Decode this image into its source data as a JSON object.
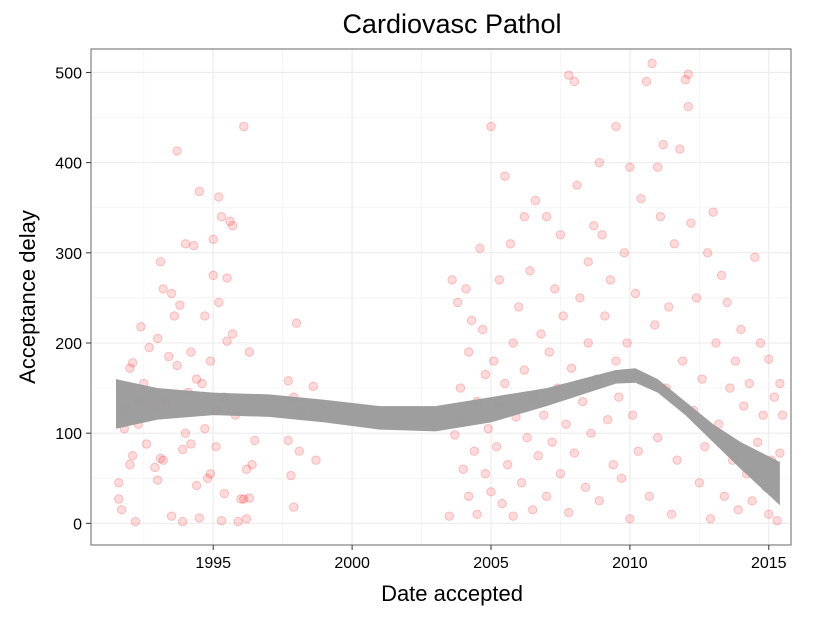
{
  "chart_data": {
    "type": "scatter",
    "title": "Cardiovasc Pathol",
    "xlabel": "Date accepted",
    "ylabel": "Acceptance delay",
    "xlim": [
      1990.6,
      2015.8
    ],
    "ylim": [
      -24,
      526
    ],
    "x_ticks": [
      1995,
      2000,
      2005,
      2010,
      2015
    ],
    "y_ticks": [
      0,
      100,
      200,
      300,
      400,
      500
    ],
    "grid": true,
    "point_color": "#ff0000",
    "band_color": "#999999",
    "smooth_band": {
      "x": [
        1991.5,
        1993,
        1995,
        1997,
        1999,
        2001,
        2003,
        2005,
        2007,
        2008.5,
        2009.5,
        2010.2,
        2011,
        2012,
        2013,
        2014,
        2015.4
      ],
      "lower": [
        105,
        115,
        120,
        118,
        112,
        104,
        102,
        112,
        130,
        145,
        155,
        156,
        145,
        120,
        90,
        60,
        20
      ],
      "upper": [
        160,
        150,
        145,
        143,
        137,
        130,
        130,
        140,
        150,
        162,
        170,
        172,
        160,
        135,
        110,
        90,
        68
      ]
    },
    "points": [
      {
        "x": 1991.6,
        "y": 45
      },
      {
        "x": 1991.6,
        "y": 27
      },
      {
        "x": 1991.7,
        "y": 15
      },
      {
        "x": 1991.8,
        "y": 105
      },
      {
        "x": 1991.9,
        "y": 125
      },
      {
        "x": 1992.0,
        "y": 172
      },
      {
        "x": 1992.0,
        "y": 65
      },
      {
        "x": 1992.1,
        "y": 178
      },
      {
        "x": 1992.1,
        "y": 75
      },
      {
        "x": 1992.2,
        "y": 2
      },
      {
        "x": 1992.3,
        "y": 137
      },
      {
        "x": 1992.3,
        "y": 110
      },
      {
        "x": 1992.4,
        "y": 218
      },
      {
        "x": 1992.5,
        "y": 155
      },
      {
        "x": 1992.6,
        "y": 88
      },
      {
        "x": 1992.7,
        "y": 195
      },
      {
        "x": 1992.8,
        "y": 130
      },
      {
        "x": 1992.9,
        "y": 62
      },
      {
        "x": 1993.0,
        "y": 205
      },
      {
        "x": 1993.0,
        "y": 48
      },
      {
        "x": 1993.1,
        "y": 72
      },
      {
        "x": 1993.1,
        "y": 290
      },
      {
        "x": 1993.2,
        "y": 260
      },
      {
        "x": 1993.2,
        "y": 70
      },
      {
        "x": 1993.3,
        "y": 135
      },
      {
        "x": 1993.4,
        "y": 185
      },
      {
        "x": 1993.5,
        "y": 8
      },
      {
        "x": 1993.5,
        "y": 255
      },
      {
        "x": 1993.6,
        "y": 230
      },
      {
        "x": 1993.7,
        "y": 413
      },
      {
        "x": 1993.7,
        "y": 175
      },
      {
        "x": 1993.8,
        "y": 242
      },
      {
        "x": 1993.9,
        "y": 2
      },
      {
        "x": 1993.9,
        "y": 82
      },
      {
        "x": 1994.0,
        "y": 100
      },
      {
        "x": 1994.0,
        "y": 310
      },
      {
        "x": 1994.1,
        "y": 145
      },
      {
        "x": 1994.2,
        "y": 190
      },
      {
        "x": 1994.2,
        "y": 88
      },
      {
        "x": 1994.3,
        "y": 308
      },
      {
        "x": 1994.4,
        "y": 160
      },
      {
        "x": 1994.4,
        "y": 42
      },
      {
        "x": 1994.5,
        "y": 6
      },
      {
        "x": 1994.5,
        "y": 368
      },
      {
        "x": 1994.6,
        "y": 155
      },
      {
        "x": 1994.7,
        "y": 230
      },
      {
        "x": 1994.7,
        "y": 105
      },
      {
        "x": 1994.8,
        "y": 50
      },
      {
        "x": 1994.9,
        "y": 55
      },
      {
        "x": 1994.9,
        "y": 180
      },
      {
        "x": 1995.0,
        "y": 275
      },
      {
        "x": 1995.0,
        "y": 315
      },
      {
        "x": 1995.1,
        "y": 125
      },
      {
        "x": 1995.1,
        "y": 85
      },
      {
        "x": 1995.2,
        "y": 245
      },
      {
        "x": 1995.2,
        "y": 362
      },
      {
        "x": 1995.3,
        "y": 3
      },
      {
        "x": 1995.3,
        "y": 340
      },
      {
        "x": 1995.4,
        "y": 140
      },
      {
        "x": 1995.4,
        "y": 33
      },
      {
        "x": 1995.5,
        "y": 272
      },
      {
        "x": 1995.5,
        "y": 202
      },
      {
        "x": 1995.6,
        "y": 335
      },
      {
        "x": 1995.7,
        "y": 330
      },
      {
        "x": 1995.7,
        "y": 210
      },
      {
        "x": 1995.8,
        "y": 120
      },
      {
        "x": 1995.9,
        "y": 2
      },
      {
        "x": 1996.0,
        "y": 27
      },
      {
        "x": 1996.1,
        "y": 27
      },
      {
        "x": 1996.1,
        "y": 440
      },
      {
        "x": 1996.2,
        "y": 5
      },
      {
        "x": 1996.2,
        "y": 60
      },
      {
        "x": 1996.3,
        "y": 190
      },
      {
        "x": 1996.3,
        "y": 28
      },
      {
        "x": 1996.4,
        "y": 65
      },
      {
        "x": 1996.5,
        "y": 92
      },
      {
        "x": 1997.7,
        "y": 158
      },
      {
        "x": 1997.7,
        "y": 92
      },
      {
        "x": 1997.8,
        "y": 53
      },
      {
        "x": 1997.9,
        "y": 18
      },
      {
        "x": 1997.9,
        "y": 140
      },
      {
        "x": 1998.0,
        "y": 222
      },
      {
        "x": 1998.1,
        "y": 80
      },
      {
        "x": 1998.2,
        "y": 125
      },
      {
        "x": 1998.6,
        "y": 152
      },
      {
        "x": 1998.7,
        "y": 70
      },
      {
        "x": 2003.5,
        "y": 8
      },
      {
        "x": 2003.6,
        "y": 270
      },
      {
        "x": 2003.7,
        "y": 98
      },
      {
        "x": 2003.8,
        "y": 245
      },
      {
        "x": 2003.9,
        "y": 150
      },
      {
        "x": 2004.0,
        "y": 60
      },
      {
        "x": 2004.0,
        "y": 112
      },
      {
        "x": 2004.1,
        "y": 260
      },
      {
        "x": 2004.2,
        "y": 190
      },
      {
        "x": 2004.2,
        "y": 30
      },
      {
        "x": 2004.3,
        "y": 225
      },
      {
        "x": 2004.4,
        "y": 80
      },
      {
        "x": 2004.5,
        "y": 135
      },
      {
        "x": 2004.5,
        "y": 10
      },
      {
        "x": 2004.6,
        "y": 305
      },
      {
        "x": 2004.7,
        "y": 215
      },
      {
        "x": 2004.8,
        "y": 165
      },
      {
        "x": 2004.8,
        "y": 55
      },
      {
        "x": 2004.9,
        "y": 105
      },
      {
        "x": 2005.0,
        "y": 440
      },
      {
        "x": 2005.0,
        "y": 35
      },
      {
        "x": 2005.1,
        "y": 180
      },
      {
        "x": 2005.2,
        "y": 85
      },
      {
        "x": 2005.3,
        "y": 270
      },
      {
        "x": 2005.3,
        "y": 130
      },
      {
        "x": 2005.4,
        "y": 22
      },
      {
        "x": 2005.5,
        "y": 385
      },
      {
        "x": 2005.5,
        "y": 155
      },
      {
        "x": 2005.6,
        "y": 65
      },
      {
        "x": 2005.7,
        "y": 310
      },
      {
        "x": 2005.8,
        "y": 200
      },
      {
        "x": 2005.8,
        "y": 8
      },
      {
        "x": 2005.9,
        "y": 118
      },
      {
        "x": 2006.0,
        "y": 240
      },
      {
        "x": 2006.1,
        "y": 45
      },
      {
        "x": 2006.2,
        "y": 170
      },
      {
        "x": 2006.2,
        "y": 340
      },
      {
        "x": 2006.3,
        "y": 95
      },
      {
        "x": 2006.4,
        "y": 280
      },
      {
        "x": 2006.5,
        "y": 15
      },
      {
        "x": 2006.5,
        "y": 140
      },
      {
        "x": 2006.6,
        "y": 358
      },
      {
        "x": 2006.7,
        "y": 75
      },
      {
        "x": 2006.8,
        "y": 210
      },
      {
        "x": 2006.9,
        "y": 120
      },
      {
        "x": 2007.0,
        "y": 340
      },
      {
        "x": 2007.0,
        "y": 30
      },
      {
        "x": 2007.1,
        "y": 190
      },
      {
        "x": 2007.2,
        "y": 90
      },
      {
        "x": 2007.3,
        "y": 260
      },
      {
        "x": 2007.4,
        "y": 150
      },
      {
        "x": 2007.5,
        "y": 55
      },
      {
        "x": 2007.5,
        "y": 320
      },
      {
        "x": 2007.6,
        "y": 230
      },
      {
        "x": 2007.7,
        "y": 110
      },
      {
        "x": 2007.8,
        "y": 497
      },
      {
        "x": 2007.8,
        "y": 12
      },
      {
        "x": 2007.9,
        "y": 172
      },
      {
        "x": 2008.0,
        "y": 490
      },
      {
        "x": 2008.0,
        "y": 78
      },
      {
        "x": 2008.1,
        "y": 375
      },
      {
        "x": 2008.2,
        "y": 250
      },
      {
        "x": 2008.3,
        "y": 135
      },
      {
        "x": 2008.4,
        "y": 40
      },
      {
        "x": 2008.5,
        "y": 290
      },
      {
        "x": 2008.5,
        "y": 200
      },
      {
        "x": 2008.6,
        "y": 100
      },
      {
        "x": 2008.7,
        "y": 330
      },
      {
        "x": 2008.8,
        "y": 160
      },
      {
        "x": 2008.9,
        "y": 400
      },
      {
        "x": 2008.9,
        "y": 25
      },
      {
        "x": 2009.0,
        "y": 320
      },
      {
        "x": 2009.1,
        "y": 230
      },
      {
        "x": 2009.2,
        "y": 115
      },
      {
        "x": 2009.3,
        "y": 270
      },
      {
        "x": 2009.4,
        "y": 65
      },
      {
        "x": 2009.5,
        "y": 180
      },
      {
        "x": 2009.5,
        "y": 440
      },
      {
        "x": 2009.6,
        "y": 140
      },
      {
        "x": 2009.7,
        "y": 50
      },
      {
        "x": 2009.8,
        "y": 300
      },
      {
        "x": 2009.9,
        "y": 200
      },
      {
        "x": 2010.0,
        "y": 395
      },
      {
        "x": 2010.0,
        "y": 5
      },
      {
        "x": 2010.1,
        "y": 120
      },
      {
        "x": 2010.2,
        "y": 255
      },
      {
        "x": 2010.3,
        "y": 80
      },
      {
        "x": 2010.4,
        "y": 360
      },
      {
        "x": 2010.5,
        "y": 160
      },
      {
        "x": 2010.6,
        "y": 490
      },
      {
        "x": 2010.7,
        "y": 30
      },
      {
        "x": 2010.8,
        "y": 510
      },
      {
        "x": 2010.9,
        "y": 220
      },
      {
        "x": 2011.0,
        "y": 395
      },
      {
        "x": 2011.0,
        "y": 95
      },
      {
        "x": 2011.1,
        "y": 340
      },
      {
        "x": 2011.2,
        "y": 420
      },
      {
        "x": 2011.3,
        "y": 150
      },
      {
        "x": 2011.4,
        "y": 240
      },
      {
        "x": 2011.5,
        "y": 10
      },
      {
        "x": 2011.6,
        "y": 310
      },
      {
        "x": 2011.7,
        "y": 70
      },
      {
        "x": 2011.8,
        "y": 415
      },
      {
        "x": 2011.9,
        "y": 180
      },
      {
        "x": 2012.0,
        "y": 492
      },
      {
        "x": 2012.1,
        "y": 498
      },
      {
        "x": 2012.1,
        "y": 462
      },
      {
        "x": 2012.2,
        "y": 333
      },
      {
        "x": 2012.3,
        "y": 125
      },
      {
        "x": 2012.4,
        "y": 250
      },
      {
        "x": 2012.5,
        "y": 45
      },
      {
        "x": 2012.6,
        "y": 160
      },
      {
        "x": 2012.7,
        "y": 85
      },
      {
        "x": 2012.8,
        "y": 300
      },
      {
        "x": 2012.9,
        "y": 5
      },
      {
        "x": 2013.0,
        "y": 345
      },
      {
        "x": 2013.1,
        "y": 200
      },
      {
        "x": 2013.2,
        "y": 110
      },
      {
        "x": 2013.3,
        "y": 275
      },
      {
        "x": 2013.4,
        "y": 30
      },
      {
        "x": 2013.5,
        "y": 245
      },
      {
        "x": 2013.6,
        "y": 150
      },
      {
        "x": 2013.7,
        "y": 70
      },
      {
        "x": 2013.8,
        "y": 180
      },
      {
        "x": 2013.9,
        "y": 15
      },
      {
        "x": 2014.0,
        "y": 215
      },
      {
        "x": 2014.1,
        "y": 130
      },
      {
        "x": 2014.2,
        "y": 55
      },
      {
        "x": 2014.3,
        "y": 155
      },
      {
        "x": 2014.4,
        "y": 25
      },
      {
        "x": 2014.5,
        "y": 295
      },
      {
        "x": 2014.6,
        "y": 90
      },
      {
        "x": 2014.7,
        "y": 200
      },
      {
        "x": 2014.8,
        "y": 120
      },
      {
        "x": 2014.9,
        "y": 40
      },
      {
        "x": 2015.0,
        "y": 182
      },
      {
        "x": 2015.0,
        "y": 10
      },
      {
        "x": 2015.1,
        "y": 70
      },
      {
        "x": 2015.2,
        "y": 140
      },
      {
        "x": 2015.3,
        "y": 3
      },
      {
        "x": 2015.4,
        "y": 155
      },
      {
        "x": 2015.4,
        "y": 78
      },
      {
        "x": 2015.5,
        "y": 120
      }
    ]
  }
}
